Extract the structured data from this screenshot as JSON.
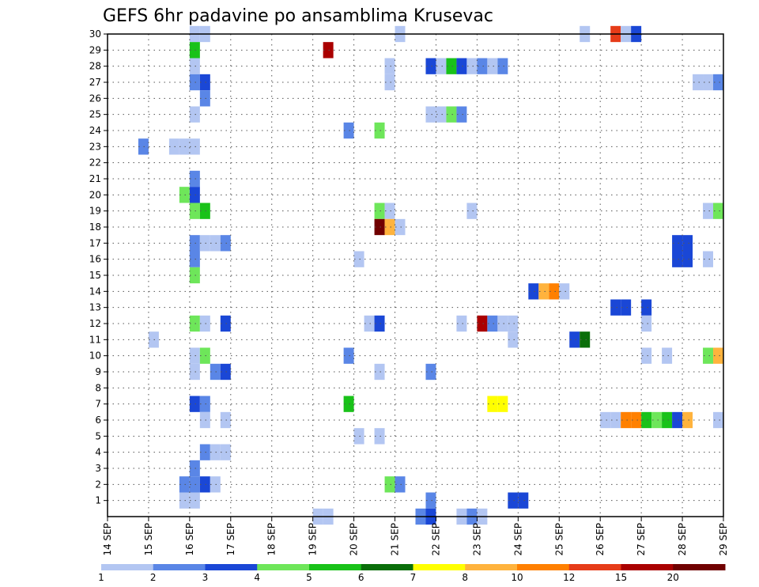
{
  "chart_data": {
    "type": "heatmap",
    "title": "GEFS 6hr padavine po ansamblima Krusevac",
    "x_tick_labels": [
      "14 SEP",
      "15 SEP",
      "16 SEP",
      "17 SEP",
      "18 SEP",
      "19 SEP",
      "20 SEP",
      "21 SEP",
      "22 SEP",
      "23 SEP",
      "24 SEP",
      "25 SEP",
      "26 SEP",
      "27 SEP",
      "28 SEP",
      "29 SEP"
    ],
    "x_range_days": [
      14,
      29
    ],
    "step_hours": 6,
    "y_tick_labels": [
      "1",
      "2",
      "3",
      "4",
      "5",
      "6",
      "7",
      "8",
      "9",
      "10",
      "11",
      "12",
      "13",
      "14",
      "15",
      "16",
      "17",
      "18",
      "19",
      "20",
      "21",
      "22",
      "23",
      "24",
      "25",
      "26",
      "27",
      "28",
      "29",
      "30"
    ],
    "y_range": [
      0,
      30
    ],
    "grid": true,
    "legend_position": "bottom",
    "legend": {
      "colors": [
        "#b3c6f2",
        "#5a86e6",
        "#1a47d6",
        "#6ee65a",
        "#19c219",
        "#0a6e0a",
        "#ffff00",
        "#ffb33d",
        "#ff8000",
        "#e63c19",
        "#aa0000",
        "#700000"
      ],
      "labels": [
        "1",
        "2",
        "3",
        "4",
        "5",
        "6",
        "7",
        "8",
        "10",
        "12",
        "15",
        "20"
      ]
    },
    "cells": [
      [
        16,
        30,
        1
      ],
      [
        16.25,
        30,
        1
      ],
      [
        16,
        29,
        5
      ],
      [
        16,
        28,
        1
      ],
      [
        16,
        27,
        2
      ],
      [
        16.25,
        27,
        3
      ],
      [
        16.25,
        26,
        2
      ],
      [
        16,
        25,
        1
      ],
      [
        14.75,
        23,
        2
      ],
      [
        15.5,
        23,
        1
      ],
      [
        15.75,
        23,
        1
      ],
      [
        16,
        23,
        1
      ],
      [
        16,
        21,
        2
      ],
      [
        16,
        20,
        3
      ],
      [
        15.75,
        20,
        4
      ],
      [
        16,
        19,
        4
      ],
      [
        16.25,
        19,
        5
      ],
      [
        16,
        17,
        2
      ],
      [
        16.25,
        17,
        1
      ],
      [
        16.5,
        17,
        1
      ],
      [
        16.75,
        17,
        2
      ],
      [
        16,
        16,
        2
      ],
      [
        16,
        15,
        4
      ],
      [
        16,
        12,
        4
      ],
      [
        16.25,
        12,
        1
      ],
      [
        16.75,
        12,
        3
      ],
      [
        15,
        11,
        1
      ],
      [
        16,
        10,
        1
      ],
      [
        16.25,
        10,
        4
      ],
      [
        16,
        9,
        1
      ],
      [
        16.5,
        9,
        2
      ],
      [
        16.75,
        9,
        3
      ],
      [
        16,
        7,
        3
      ],
      [
        16.25,
        7,
        2
      ],
      [
        16.25,
        6,
        1
      ],
      [
        16.75,
        6,
        1
      ],
      [
        16.25,
        4,
        2
      ],
      [
        16.5,
        4,
        1
      ],
      [
        16.75,
        4,
        1
      ],
      [
        16,
        3,
        2
      ],
      [
        15.75,
        2,
        2
      ],
      [
        16,
        2,
        2
      ],
      [
        16.25,
        2,
        3
      ],
      [
        16.5,
        2,
        1
      ],
      [
        15.75,
        1,
        1
      ],
      [
        16,
        1,
        1
      ],
      [
        19,
        0,
        1
      ],
      [
        19.25,
        0,
        1
      ],
      [
        19.25,
        29,
        11
      ],
      [
        20.75,
        28,
        1
      ],
      [
        20.75,
        27,
        1
      ],
      [
        19.75,
        24,
        2
      ],
      [
        20.5,
        24,
        4
      ],
      [
        20.5,
        19,
        4
      ],
      [
        20.75,
        19,
        1
      ],
      [
        20.5,
        18,
        12
      ],
      [
        20.75,
        18,
        8
      ],
      [
        21,
        18,
        1
      ],
      [
        20,
        16,
        1
      ],
      [
        20.25,
        12,
        1
      ],
      [
        20.5,
        12,
        3
      ],
      [
        19.75,
        10,
        2
      ],
      [
        20.5,
        9,
        1
      ],
      [
        19.75,
        7,
        5
      ],
      [
        20,
        5,
        1
      ],
      [
        20.5,
        5,
        1
      ],
      [
        20.75,
        2,
        4
      ],
      [
        21,
        2,
        2
      ],
      [
        21,
        30,
        1
      ],
      [
        21.75,
        28,
        3
      ],
      [
        22,
        28,
        1
      ],
      [
        22.25,
        28,
        5
      ],
      [
        22.5,
        28,
        3
      ],
      [
        22.75,
        28,
        1
      ],
      [
        23,
        28,
        2
      ],
      [
        23.25,
        28,
        1
      ],
      [
        23.5,
        28,
        2
      ],
      [
        21.75,
        25,
        1
      ],
      [
        22,
        25,
        1
      ],
      [
        22.25,
        25,
        4
      ],
      [
        22.5,
        25,
        2
      ],
      [
        22.75,
        19,
        1
      ],
      [
        22.5,
        12,
        1
      ],
      [
        23,
        12,
        11
      ],
      [
        23.25,
        12,
        2
      ],
      [
        23.5,
        12,
        1
      ],
      [
        23.75,
        12,
        1
      ],
      [
        23.75,
        11,
        1
      ],
      [
        21.75,
        9,
        2
      ],
      [
        23.25,
        7,
        7
      ],
      [
        23.5,
        7,
        7
      ],
      [
        21.75,
        1,
        2
      ],
      [
        21.5,
        0,
        2
      ],
      [
        21.75,
        0,
        3
      ],
      [
        22.5,
        0,
        1
      ],
      [
        22.75,
        0,
        2
      ],
      [
        23,
        0,
        1
      ],
      [
        23.75,
        1,
        3
      ],
      [
        24,
        1,
        3
      ],
      [
        24.25,
        14,
        3
      ],
      [
        24.5,
        14,
        8
      ],
      [
        24.75,
        14,
        9
      ],
      [
        25,
        14,
        1
      ],
      [
        25.25,
        11,
        3
      ],
      [
        25.5,
        11,
        6
      ],
      [
        25.5,
        30,
        1
      ],
      [
        26.25,
        30,
        10
      ],
      [
        26.5,
        30,
        1
      ],
      [
        26.75,
        30,
        3
      ],
      [
        26.25,
        13,
        3
      ],
      [
        26.5,
        13,
        3
      ],
      [
        27,
        13,
        3
      ],
      [
        27,
        12,
        1
      ],
      [
        27,
        10,
        1
      ],
      [
        27.5,
        10,
        1
      ],
      [
        28.5,
        10,
        4
      ],
      [
        28.75,
        10,
        8
      ],
      [
        26,
        6,
        1
      ],
      [
        26.25,
        6,
        1
      ],
      [
        26.5,
        6,
        9
      ],
      [
        26.75,
        6,
        9
      ],
      [
        27,
        6,
        5
      ],
      [
        27.25,
        6,
        4
      ],
      [
        27.5,
        6,
        5
      ],
      [
        27.75,
        6,
        3
      ],
      [
        28,
        6,
        8
      ],
      [
        28.75,
        6,
        1
      ],
      [
        28.25,
        27,
        1
      ],
      [
        28.5,
        27,
        1
      ],
      [
        28.75,
        27,
        2
      ],
      [
        28.5,
        19,
        1
      ],
      [
        28.75,
        19,
        4
      ],
      [
        27.75,
        17,
        3
      ],
      [
        28,
        17,
        3
      ],
      [
        27.75,
        16,
        3
      ],
      [
        28,
        16,
        3
      ],
      [
        28.5,
        16,
        1
      ]
    ]
  }
}
